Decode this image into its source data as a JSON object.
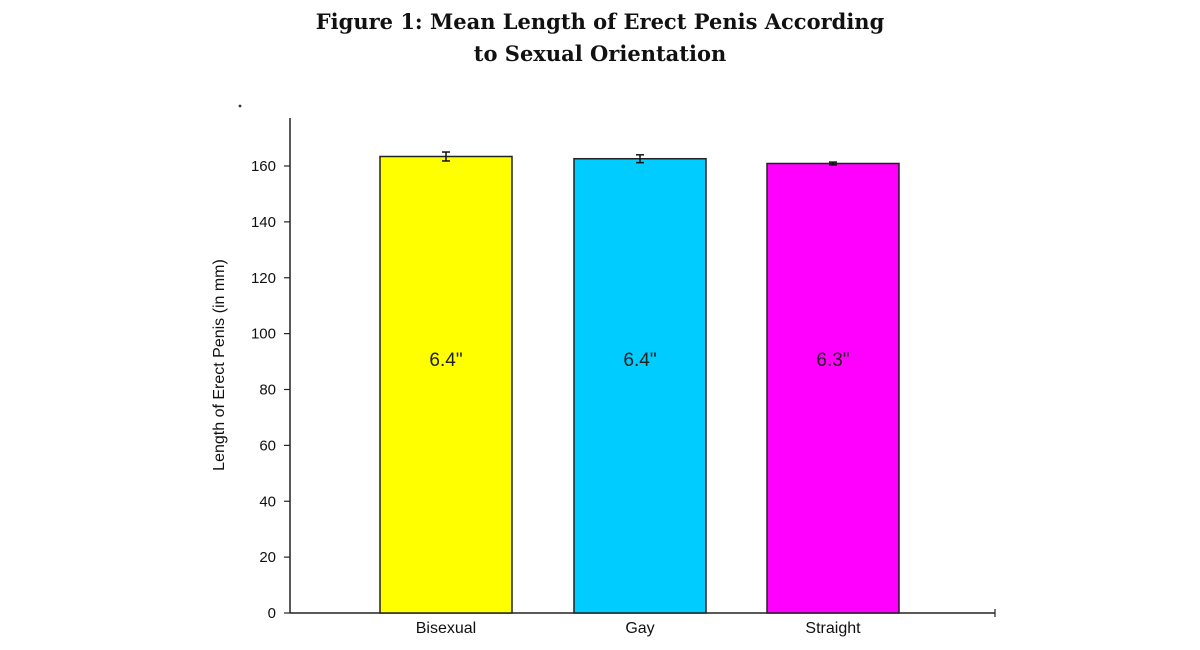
{
  "chart_data": {
    "type": "bar",
    "title_line1": "Figure 1: Mean Length of Erect Penis According",
    "title_line2": "to Sexual Orientation",
    "xlabel": "",
    "ylabel": "Length of Erect Penis (in mm)",
    "categories": [
      "Bisexual",
      "Gay",
      "Straight"
    ],
    "values": [
      163.4,
      162.6,
      160.9
    ],
    "error": [
      1.6,
      1.4,
      0.5
    ],
    "bar_labels": [
      "6.4\"",
      "6.4\"",
      "6.3\""
    ],
    "colors": [
      "#ffff00",
      "#00ccff",
      "#ff00ff"
    ],
    "ylim": [
      0,
      175
    ],
    "yticks": [
      0,
      20,
      40,
      60,
      80,
      100,
      120,
      140,
      160
    ],
    "grid": false,
    "legend": "none"
  }
}
